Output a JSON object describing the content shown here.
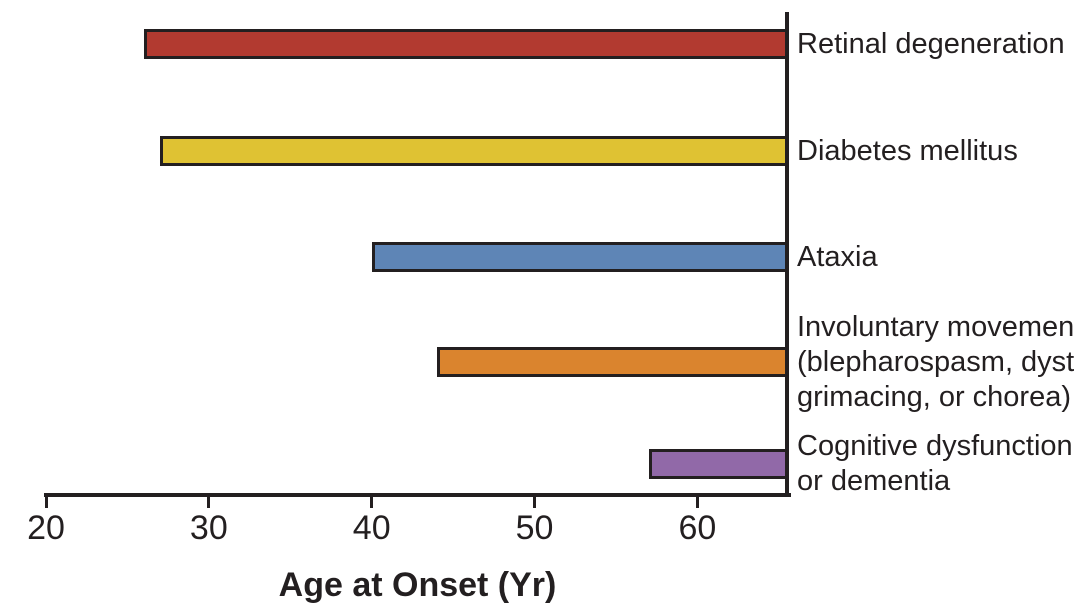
{
  "figure": {
    "background": "#ffffff"
  },
  "chart_data": {
    "type": "bar",
    "orientation": "horizontal",
    "title": "",
    "xlabel": "Age at Onset (Yr)",
    "xlim": [
      20,
      65.5
    ],
    "xticks": [
      20,
      30,
      40,
      50,
      60
    ],
    "grid": false,
    "legend": "none",
    "bars_extend_to_right_boundary": true,
    "series": [
      {
        "label_lines": [
          "Retinal degeneration"
        ],
        "onset_age": 26,
        "bar_end": 65.5,
        "color": "#B23A30"
      },
      {
        "label_lines": [
          "Diabetes mellitus"
        ],
        "onset_age": 27,
        "bar_end": 65.5,
        "color": "#DFC233"
      },
      {
        "label_lines": [
          "Ataxia"
        ],
        "onset_age": 40,
        "bar_end": 65.5,
        "color": "#5E85B6"
      },
      {
        "label_lines": [
          "Involuntary movemen",
          "(blepharospasm, dyst",
          "grimacing, or chorea)"
        ],
        "onset_age": 44,
        "bar_end": 65.5,
        "color": "#DA842E"
      },
      {
        "label_lines": [
          "Cognitive dysfunction",
          "or dementia"
        ],
        "onset_age": 57,
        "bar_end": 65.5,
        "color": "#9169A8"
      }
    ],
    "colors": {
      "axis": "#231F20",
      "bar_border": "#231F20",
      "text": "#231F20"
    }
  }
}
